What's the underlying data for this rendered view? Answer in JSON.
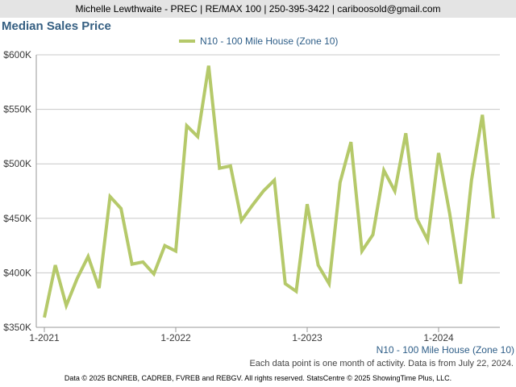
{
  "header": {
    "contact": "Michelle Lewthwaite - PREC | RE/MAX 100 | 250-395-3422 | cariboosold@gmail.com"
  },
  "note": "Each data point is one month of activity. Data is from July 22, 2024.",
  "footer": "Data © 2025 BCNREB, CADREB, FVREB and REBGV. All rights reserved. StatsCentre © 2025 ShowingTime Plus, LLC.",
  "colors": {
    "series": "#b5c96a",
    "title": "#355f82",
    "header_bg": "#e4e4e4",
    "grid": "#c8c8c8"
  },
  "chart_data": {
    "type": "line",
    "title": "Median Sales Price",
    "xlabel": "N10 - 100 Mile House (Zone 10)",
    "ylabel": "",
    "ylim": [
      350000,
      600000
    ],
    "y_ticks": [
      {
        "value": 350000,
        "label": "$350K"
      },
      {
        "value": 400000,
        "label": "$400K"
      },
      {
        "value": 450000,
        "label": "$450K"
      },
      {
        "value": 500000,
        "label": "$500K"
      },
      {
        "value": 550000,
        "label": "$550K"
      },
      {
        "value": 600000,
        "label": "$600K"
      }
    ],
    "x_ticks": [
      {
        "month": "2021-01",
        "label": "1-2021"
      },
      {
        "month": "2022-01",
        "label": "1-2022"
      },
      {
        "month": "2023-01",
        "label": "1-2023"
      },
      {
        "month": "2024-01",
        "label": "1-2024"
      }
    ],
    "grid": true,
    "legend_position": "top-center",
    "series": [
      {
        "name": "N10 - 100 Mile House (Zone 10)",
        "x": [
          "2021-01",
          "2021-02",
          "2021-03",
          "2021-04",
          "2021-05",
          "2021-06",
          "2021-07",
          "2021-08",
          "2021-09",
          "2021-10",
          "2021-11",
          "2021-12",
          "2022-01",
          "2022-02",
          "2022-03",
          "2022-04",
          "2022-05",
          "2022-06",
          "2022-07",
          "2022-08",
          "2022-09",
          "2022-10",
          "2022-11",
          "2022-12",
          "2023-01",
          "2023-02",
          "2023-03",
          "2023-04",
          "2023-05",
          "2023-06",
          "2023-07",
          "2023-08",
          "2023-09",
          "2023-10",
          "2023-11",
          "2023-12",
          "2024-01",
          "2024-02",
          "2024-03",
          "2024-04",
          "2024-05",
          "2024-06"
        ],
        "values": [
          359000,
          407000,
          370000,
          395000,
          415000,
          386000,
          470000,
          459000,
          408000,
          410000,
          399000,
          425000,
          420000,
          535000,
          525000,
          590000,
          496000,
          498000,
          448000,
          462000,
          475000,
          485000,
          390000,
          383000,
          463000,
          407000,
          390000,
          483000,
          520000,
          420000,
          435000,
          494000,
          475000,
          528000,
          450000,
          430000,
          510000,
          455000,
          390000,
          485000,
          545000,
          450000
        ]
      }
    ]
  }
}
